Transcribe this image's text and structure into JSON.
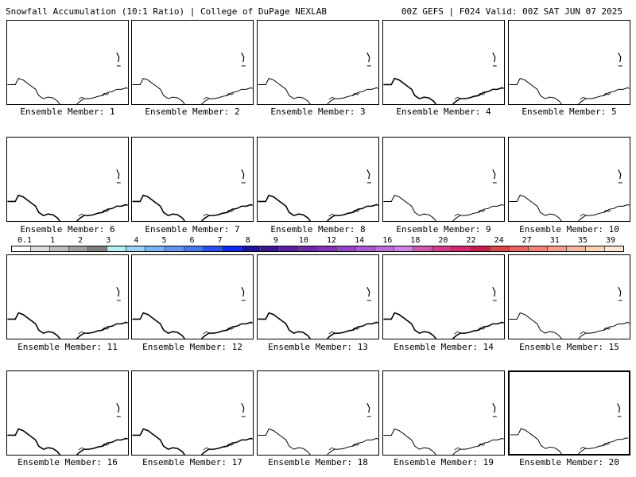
{
  "header": {
    "title_left": "Snowfall Accumulation (10:1 Ratio) | College of DuPage NEXLAB",
    "title_right": "00Z GEFS | F024 Valid: 00Z SAT JUN 07 2025"
  },
  "panel_label_prefix": "Ensemble Member: ",
  "members": [
    1,
    2,
    3,
    4,
    5,
    6,
    7,
    8,
    9,
    10,
    11,
    12,
    13,
    14,
    15,
    16,
    17,
    18,
    19,
    20
  ],
  "selected_member": 20,
  "colorbar": {
    "tick_labels": [
      "0.1",
      "1",
      "2",
      "3",
      "4",
      "5",
      "6",
      "7",
      "8",
      "9",
      "10",
      "12",
      "14",
      "16",
      "18",
      "20",
      "22",
      "24",
      "27",
      "31",
      "35",
      "39"
    ],
    "colors": [
      "#ffffff",
      "#dcdcdc",
      "#bebebe",
      "#a0a0a0",
      "#808080",
      "#b4f0f0",
      "#a0d2f5",
      "#78b4f5",
      "#6496f0",
      "#4678f0",
      "#2850f0",
      "#0a28f0",
      "#1e14a0",
      "#3c1496",
      "#5a1ea0",
      "#6e28aa",
      "#8232b4",
      "#9646c3",
      "#aa5ad2",
      "#be6edc",
      "#d282e6",
      "#d25aaa",
      "#d23c8c",
      "#d2286e",
      "#c81e50",
      "#dc4646",
      "#e66464",
      "#f08278",
      "#f5a08c",
      "#f5b9a0",
      "#fad2b4",
      "#fae6d2"
    ]
  }
}
